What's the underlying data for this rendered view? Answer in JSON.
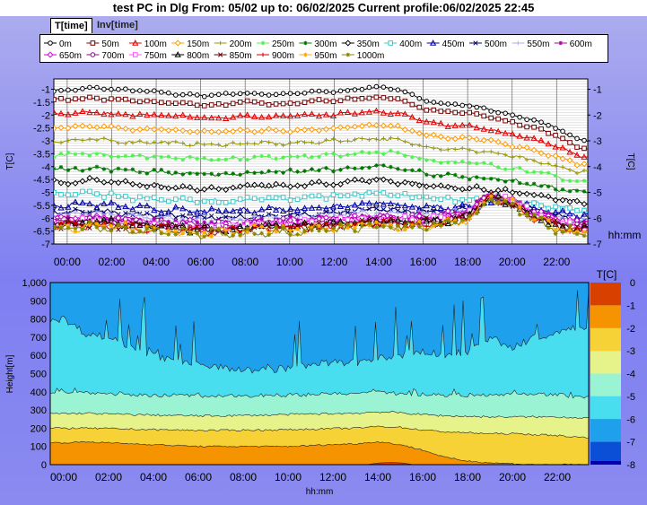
{
  "window": {
    "title": "test PC in Dlg  From: 05/02 up to: 06/02/2025 Current profile:06/02/2025 22:45"
  },
  "tabs": [
    {
      "label": "T[time]",
      "active": true
    },
    {
      "label": "Inv[time]",
      "active": false
    }
  ],
  "chart_data": [
    {
      "type": "line",
      "ylabel": "T[C]",
      "ylabel_right": "T[C]",
      "xlabel": "hh:mm",
      "xtick_labels": [
        "00:00",
        "02:00",
        "04:00",
        "06:00",
        "08:00",
        "10:00",
        "12:00",
        "14:00",
        "16:00",
        "18:00",
        "20:00",
        "22:00"
      ],
      "xlim_hours": [
        -0.6,
        23.4
      ],
      "ylim": [
        -7,
        -0.6
      ],
      "yticks_left": [
        "-1",
        "-1.5",
        "-2",
        "-2.5",
        "-3",
        "-3.5",
        "-4",
        "-4.5",
        "-5",
        "-5.5",
        "-6",
        "-6.5",
        "-7"
      ],
      "yticks_right": [
        "-1",
        "-2",
        "-3",
        "-4",
        "-5",
        "-6",
        "-7"
      ],
      "grid": true,
      "legend_placement": "top",
      "series": [
        {
          "name": "0m",
          "color": "#000000",
          "marker": "circle",
          "values": [
            -1.05,
            -0.95,
            -1.0,
            -1.05,
            -1.1,
            -1.2,
            -1.25,
            -1.2,
            -1.15,
            -1.2,
            -1.2,
            -1.1,
            -1.1,
            -1.0,
            -0.9,
            -1.05,
            -1.4,
            -1.6,
            -1.6,
            -1.8,
            -2.0,
            -2.2,
            -2.5,
            -3.0
          ]
        },
        {
          "name": "50m",
          "color": "#7a0000",
          "marker": "square",
          "values": [
            -1.4,
            -1.35,
            -1.4,
            -1.45,
            -1.5,
            -1.55,
            -1.6,
            -1.6,
            -1.5,
            -1.55,
            -1.55,
            -1.45,
            -1.45,
            -1.35,
            -1.3,
            -1.4,
            -1.75,
            -1.9,
            -1.9,
            -2.1,
            -2.3,
            -2.5,
            -2.8,
            -3.3
          ]
        },
        {
          "name": "100m",
          "color": "#e00000",
          "marker": "triangle",
          "values": [
            -1.95,
            -1.9,
            -1.95,
            -2.0,
            -2.0,
            -2.05,
            -2.1,
            -2.1,
            -2.05,
            -2.1,
            -2.05,
            -2.0,
            -2.0,
            -1.9,
            -1.85,
            -1.95,
            -2.25,
            -2.4,
            -2.4,
            -2.55,
            -2.75,
            -2.95,
            -3.2,
            -3.6
          ]
        },
        {
          "name": "150m",
          "color": "#ff9900",
          "marker": "diamond",
          "values": [
            -2.5,
            -2.45,
            -2.5,
            -2.55,
            -2.55,
            -2.6,
            -2.65,
            -2.65,
            -2.6,
            -2.6,
            -2.6,
            -2.55,
            -2.5,
            -2.45,
            -2.4,
            -2.5,
            -2.75,
            -2.9,
            -2.9,
            -3.0,
            -3.2,
            -3.4,
            -3.6,
            -3.9
          ]
        },
        {
          "name": "200m",
          "color": "#999900",
          "marker": "plus",
          "values": [
            -3.0,
            -2.95,
            -3.0,
            -3.05,
            -3.05,
            -3.1,
            -3.15,
            -3.15,
            -3.1,
            -3.1,
            -3.1,
            -3.05,
            -3.0,
            -2.95,
            -2.9,
            -3.0,
            -3.2,
            -3.3,
            -3.35,
            -3.45,
            -3.6,
            -3.8,
            -4.0,
            -4.2
          ]
        },
        {
          "name": "250m",
          "color": "#55ee55",
          "marker": "asterisk",
          "values": [
            -3.55,
            -3.5,
            -3.55,
            -3.6,
            -3.6,
            -3.65,
            -3.7,
            -3.7,
            -3.65,
            -3.65,
            -3.6,
            -3.6,
            -3.55,
            -3.5,
            -3.45,
            -3.5,
            -3.7,
            -3.8,
            -3.85,
            -3.95,
            -4.05,
            -4.2,
            -4.4,
            -4.6
          ]
        },
        {
          "name": "300m",
          "color": "#007700",
          "marker": "asterisk",
          "values": [
            -4.1,
            -4.05,
            -4.1,
            -4.15,
            -4.2,
            -4.25,
            -4.3,
            -4.3,
            -4.25,
            -4.2,
            -4.2,
            -4.15,
            -4.1,
            -4.05,
            -4.0,
            -4.1,
            -4.25,
            -4.35,
            -4.4,
            -4.45,
            -4.55,
            -4.7,
            -4.85,
            -5.0
          ]
        },
        {
          "name": "350m",
          "color": "#000000",
          "marker": "diamond",
          "values": [
            -4.6,
            -4.55,
            -4.6,
            -4.7,
            -4.75,
            -4.8,
            -4.85,
            -4.85,
            -4.8,
            -4.75,
            -4.75,
            -4.7,
            -4.65,
            -4.55,
            -4.5,
            -4.6,
            -4.7,
            -4.8,
            -4.85,
            -4.9,
            -5.0,
            -5.1,
            -5.25,
            -5.4
          ]
        },
        {
          "name": "400m",
          "color": "#33cccc",
          "marker": "square",
          "values": [
            -5.1,
            -5.05,
            -5.1,
            -5.2,
            -5.25,
            -5.3,
            -5.35,
            -5.35,
            -5.3,
            -5.25,
            -5.25,
            -5.2,
            -5.15,
            -5.05,
            -5.0,
            -5.1,
            -5.2,
            -5.25,
            -5.3,
            -5.3,
            -5.35,
            -5.45,
            -5.55,
            -5.7
          ]
        },
        {
          "name": "450m",
          "color": "#0000aa",
          "marker": "triangle",
          "values": [
            -5.5,
            -5.45,
            -5.5,
            -5.6,
            -5.65,
            -5.7,
            -5.75,
            -5.75,
            -5.7,
            -5.65,
            -5.65,
            -5.6,
            -5.55,
            -5.45,
            -5.4,
            -5.5,
            -5.55,
            -5.6,
            -5.55,
            -5.35,
            -5.4,
            -5.6,
            -5.75,
            -5.9
          ]
        },
        {
          "name": "500m",
          "color": "#000066",
          "marker": "x",
          "values": [
            -5.75,
            -5.7,
            -5.75,
            -5.85,
            -5.9,
            -5.95,
            -6.0,
            -6.0,
            -5.95,
            -5.9,
            -5.9,
            -5.85,
            -5.8,
            -5.7,
            -5.65,
            -5.75,
            -5.75,
            -5.75,
            -5.6,
            -5.2,
            -5.35,
            -5.7,
            -5.9,
            -6.1
          ]
        },
        {
          "name": "550m",
          "color": "#aaaaff",
          "marker": "plus",
          "values": [
            -5.9,
            -5.85,
            -5.9,
            -5.95,
            -6.0,
            -6.05,
            -6.1,
            -6.1,
            -6.05,
            -6.0,
            -6.0,
            -5.95,
            -5.9,
            -5.85,
            -5.8,
            -5.85,
            -5.85,
            -5.8,
            -5.65,
            -5.15,
            -5.35,
            -5.75,
            -5.95,
            -6.15
          ]
        },
        {
          "name": "600m",
          "color": "#aa00aa",
          "marker": "asterisk",
          "values": [
            -6.0,
            -5.95,
            -6.0,
            -6.05,
            -6.1,
            -6.15,
            -6.2,
            -6.2,
            -6.15,
            -6.1,
            -6.1,
            -6.05,
            -6.0,
            -5.95,
            -5.9,
            -5.95,
            -5.95,
            -5.85,
            -5.7,
            -5.1,
            -5.35,
            -5.75,
            -6.0,
            -6.2
          ]
        },
        {
          "name": "650m",
          "color": "#cc00cc",
          "marker": "diamond",
          "values": [
            -6.05,
            -6.0,
            -6.05,
            -6.1,
            -6.15,
            -6.2,
            -6.25,
            -6.25,
            -6.2,
            -6.15,
            -6.15,
            -6.1,
            -6.05,
            -6.0,
            -5.95,
            -6.0,
            -6.0,
            -5.9,
            -5.75,
            -5.1,
            -5.35,
            -5.8,
            -6.05,
            -6.25
          ]
        },
        {
          "name": "700m",
          "color": "#990099",
          "marker": "circle",
          "values": [
            -6.1,
            -6.05,
            -6.1,
            -6.15,
            -6.2,
            -6.25,
            -6.3,
            -6.3,
            -6.25,
            -6.2,
            -6.2,
            -6.15,
            -6.1,
            -6.05,
            -6.0,
            -6.05,
            -6.05,
            -5.95,
            -5.8,
            -5.1,
            -5.35,
            -5.8,
            -6.1,
            -6.3
          ]
        },
        {
          "name": "750m",
          "color": "#ff55ff",
          "marker": "square",
          "values": [
            -6.15,
            -6.1,
            -6.15,
            -6.2,
            -6.25,
            -6.3,
            -6.35,
            -6.35,
            -6.3,
            -6.25,
            -6.25,
            -6.2,
            -6.15,
            -6.1,
            -6.05,
            -6.1,
            -6.1,
            -6.0,
            -5.85,
            -5.1,
            -5.35,
            -5.85,
            -6.15,
            -6.35
          ]
        },
        {
          "name": "800m",
          "color": "#000000",
          "marker": "triangle",
          "values": [
            -6.2,
            -6.15,
            -6.2,
            -6.25,
            -6.3,
            -6.35,
            -6.4,
            -6.4,
            -6.35,
            -6.3,
            -6.3,
            -6.25,
            -6.2,
            -6.15,
            -6.1,
            -6.15,
            -6.15,
            -6.05,
            -5.9,
            -5.15,
            -5.4,
            -5.9,
            -6.2,
            -6.4
          ]
        },
        {
          "name": "850m",
          "color": "#660000",
          "marker": "x",
          "values": [
            -6.25,
            -6.2,
            -6.25,
            -6.3,
            -6.35,
            -6.4,
            -6.45,
            -6.45,
            -6.4,
            -6.35,
            -6.35,
            -6.3,
            -6.25,
            -6.2,
            -6.15,
            -6.2,
            -6.2,
            -6.1,
            -5.95,
            -5.15,
            -5.4,
            -5.9,
            -6.25,
            -6.45
          ]
        },
        {
          "name": "900m",
          "color": "#cc0000",
          "marker": "plus",
          "values": [
            -6.3,
            -6.25,
            -6.3,
            -6.35,
            -6.4,
            -6.45,
            -6.5,
            -6.5,
            -6.45,
            -6.4,
            -6.4,
            -6.35,
            -6.3,
            -6.25,
            -6.2,
            -6.25,
            -6.25,
            -6.15,
            -6.0,
            -5.2,
            -5.45,
            -5.95,
            -6.3,
            -6.5
          ]
        },
        {
          "name": "950m",
          "color": "#ffaa00",
          "marker": "asterisk",
          "values": [
            -6.35,
            -6.3,
            -6.35,
            -6.4,
            -6.45,
            -6.5,
            -6.55,
            -6.55,
            -6.5,
            -6.45,
            -6.45,
            -6.4,
            -6.35,
            -6.3,
            -6.25,
            -6.3,
            -6.3,
            -6.2,
            -6.05,
            -5.2,
            -5.45,
            -6.0,
            -6.35,
            -6.55
          ]
        },
        {
          "name": "1000m",
          "color": "#888800",
          "marker": "asterisk",
          "values": [
            -6.4,
            -6.35,
            -6.4,
            -6.45,
            -6.5,
            -6.55,
            -6.6,
            -6.6,
            -6.55,
            -6.5,
            -6.5,
            -6.45,
            -6.4,
            -6.35,
            -6.3,
            -6.35,
            -6.35,
            -6.25,
            -6.1,
            -5.25,
            -5.5,
            -6.05,
            -6.4,
            -6.6
          ]
        }
      ]
    },
    {
      "type": "heatmap",
      "ylabel": "Height[m]",
      "xlabel": "hh:mm",
      "xtick_labels": [
        "00:00",
        "02:00",
        "04:00",
        "06:00",
        "08:00",
        "10:00",
        "12:00",
        "14:00",
        "16:00",
        "18:00",
        "20:00",
        "22:00"
      ],
      "yticks": [
        "0",
        "100",
        "200",
        "300",
        "400",
        "500",
        "600",
        "700",
        "800",
        "900",
        "1,000"
      ],
      "ylim": [
        0,
        1000
      ],
      "colorbar_title": "T[C]",
      "colorbar_ticks": [
        "0",
        "-1",
        "-2",
        "-3",
        "-4",
        "-5",
        "-6",
        "-7",
        "-8"
      ],
      "levels": [
        {
          "min": -1,
          "max": 0,
          "color": "#d84000"
        },
        {
          "min": -2,
          "max": -1,
          "color": "#f59400"
        },
        {
          "min": -3,
          "max": -2,
          "color": "#f6d236"
        },
        {
          "min": -4,
          "max": -3,
          "color": "#e6f28a"
        },
        {
          "min": -5,
          "max": -4,
          "color": "#9af4d4"
        },
        {
          "min": -6,
          "max": -5,
          "color": "#48def0"
        },
        {
          "min": -7,
          "max": -6,
          "color": "#1ea0ec"
        },
        {
          "min": -8,
          "max": -7,
          "color": "#0a4fd6"
        },
        {
          "min": -9,
          "max": -8,
          "color": "#0000b0"
        }
      ],
      "isotherm_heights_m": {
        "minus1": [
          120,
          125,
          120,
          115,
          110,
          105,
          100,
          100,
          100,
          100,
          100,
          105,
          110,
          115,
          125,
          110,
          80,
          40,
          20,
          10,
          5,
          0,
          0,
          0
        ],
        "minus2": [
          200,
          200,
          198,
          195,
          192,
          190,
          188,
          188,
          190,
          190,
          192,
          195,
          198,
          200,
          210,
          205,
          190,
          180,
          175,
          170,
          170,
          165,
          160,
          150
        ],
        "minus3": [
          280,
          282,
          278,
          275,
          272,
          270,
          268,
          268,
          270,
          272,
          275,
          278,
          280,
          282,
          290,
          285,
          275,
          268,
          265,
          262,
          262,
          262,
          262,
          258
        ],
        "minus4": [
          400,
          395,
          390,
          385,
          380,
          380,
          378,
          375,
          378,
          380,
          382,
          385,
          388,
          390,
          395,
          390,
          385,
          382,
          380,
          385,
          390,
          388,
          385,
          370
        ],
        "minus5": [
          800,
          720,
          700,
          650,
          600,
          560,
          550,
          540,
          520,
          520,
          530,
          550,
          560,
          560,
          580,
          600,
          620,
          600,
          620,
          700,
          640,
          700,
          720,
          760
        ]
      }
    }
  ]
}
